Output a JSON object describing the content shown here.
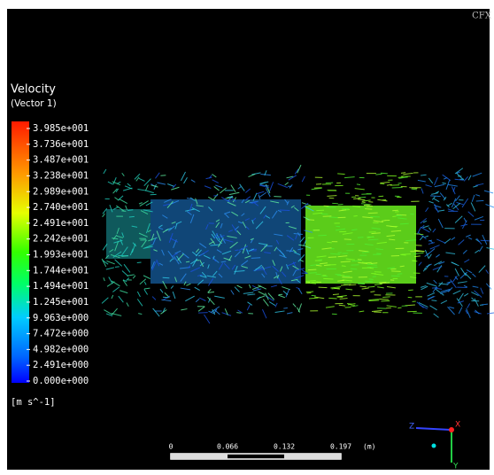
{
  "logo": "CFX",
  "legend": {
    "title": "Velocity",
    "subtitle": "(Vector 1)",
    "labels": [
      "3.985e+001",
      "3.736e+001",
      "3.487e+001",
      "3.238e+001",
      "2.989e+001",
      "2.740e+001",
      "2.491e+001",
      "2.242e+001",
      "1.993e+001",
      "1.744e+001",
      "1.494e+001",
      "1.245e+001",
      "9.963e+000",
      "7.472e+000",
      "4.982e+000",
      "2.491e+000",
      "0.000e+000"
    ],
    "unit": "[m s^-1]"
  },
  "scale_bar": {
    "labels": [
      "0",
      "0.066",
      "0.132",
      "0.197"
    ],
    "unit": "(m)"
  },
  "axes": {
    "x": "X",
    "y": "Y",
    "z": "Z"
  }
}
